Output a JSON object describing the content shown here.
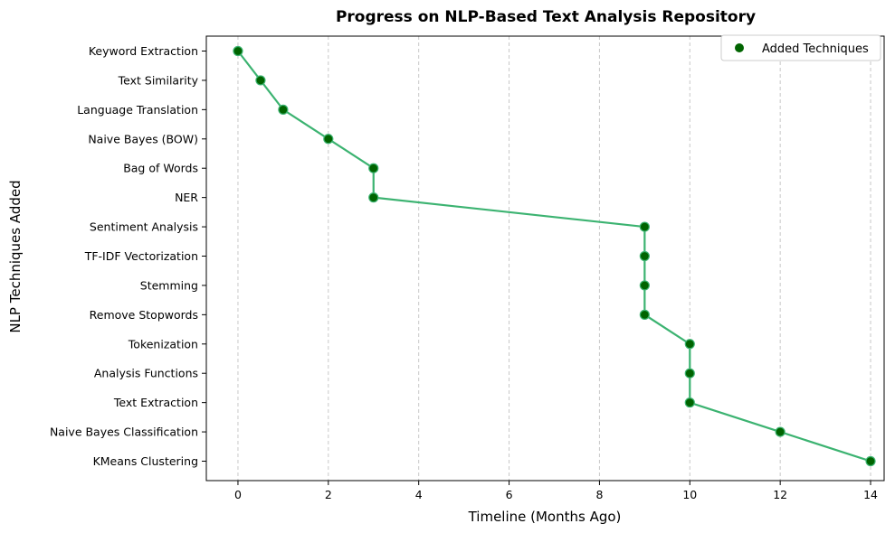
{
  "chart_data": {
    "type": "line",
    "title": "Progress on NLP-Based Text Analysis Repository",
    "xlabel": "Timeline (Months Ago)",
    "ylabel": "NLP Techniques Added",
    "xlim": [
      -0.7,
      14.3
    ],
    "xticks": [
      0,
      2,
      4,
      6,
      8,
      10,
      12,
      14
    ],
    "grid": "x-dashed",
    "legend": {
      "position": "top-right",
      "entries": [
        "Added Techniques"
      ]
    },
    "colors": {
      "line": "#3cb371",
      "marker": "#006400",
      "grid": "#c8c8c8",
      "axis": "#000000"
    },
    "series": [
      {
        "name": "Added Techniques",
        "points": [
          {
            "label": "Keyword Extraction",
            "x": 0
          },
          {
            "label": "Text Similarity",
            "x": 0.5
          },
          {
            "label": "Language Translation",
            "x": 1
          },
          {
            "label": "Naive Bayes (BOW)",
            "x": 2
          },
          {
            "label": "Bag of Words",
            "x": 3
          },
          {
            "label": "NER",
            "x": 3
          },
          {
            "label": "Sentiment Analysis",
            "x": 9
          },
          {
            "label": "TF-IDF Vectorization",
            "x": 9
          },
          {
            "label": "Stemming",
            "x": 9
          },
          {
            "label": "Remove Stopwords",
            "x": 9
          },
          {
            "label": "Tokenization",
            "x": 10
          },
          {
            "label": "Analysis Functions",
            "x": 10
          },
          {
            "label": "Text Extraction",
            "x": 10
          },
          {
            "label": "Naive Bayes Classification",
            "x": 12
          },
          {
            "label": "KMeans Clustering",
            "x": 14
          }
        ]
      }
    ]
  }
}
